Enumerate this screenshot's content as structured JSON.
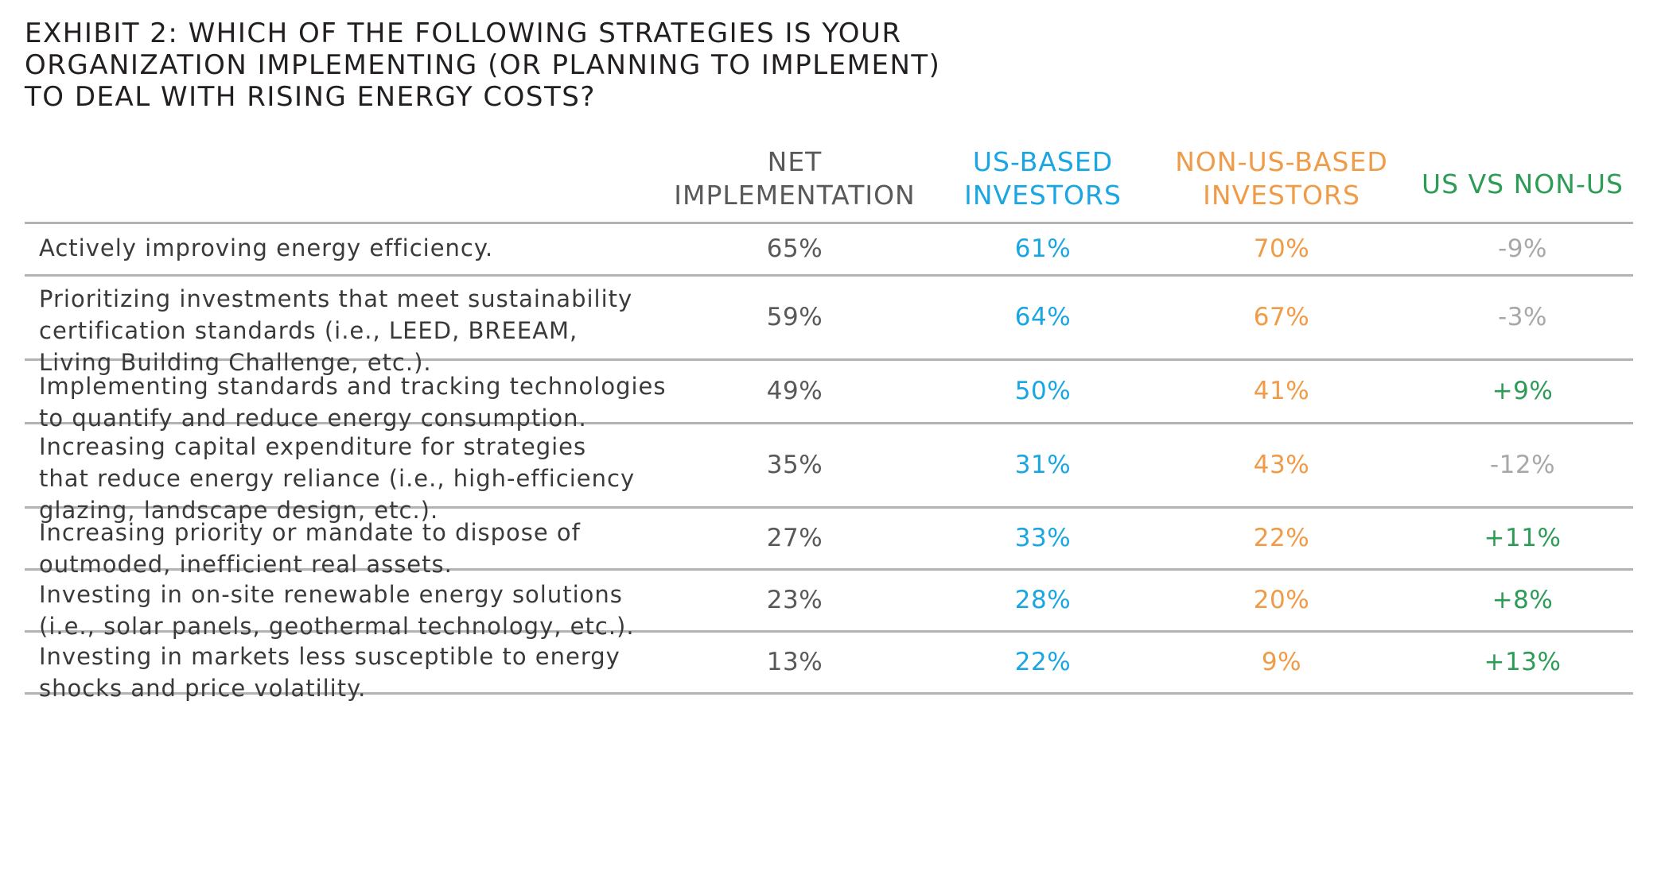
{
  "title_lines": [
    "EXHIBIT 2: WHICH OF THE FOLLOWING STRATEGIES IS YOUR",
    "ORGANIZATION IMPLEMENTING (OR PLANNING TO IMPLEMENT)",
    "TO DEAL WITH RISING ENERGY COSTS?"
  ],
  "colors": {
    "net": "#58595b",
    "us": "#1aa6e2",
    "nonus": "#ef9b47",
    "positive": "#2e9b57",
    "negative": "#a8a8a8",
    "rule": "#b3b3b3"
  },
  "columns": [
    {
      "key": "net",
      "lines": [
        "NET",
        "IMPLEMENTATION"
      ],
      "color": "#58595b"
    },
    {
      "key": "us",
      "lines": [
        "US-BASED",
        "INVESTORS"
      ],
      "color": "#1aa6e2"
    },
    {
      "key": "nonus",
      "lines": [
        "NON-US-BASED",
        "INVESTORS"
      ],
      "color": "#ef9b47"
    },
    {
      "key": "diff",
      "lines": [
        "US VS NON-US"
      ],
      "color": "#2e9b57"
    }
  ],
  "rows": [
    {
      "label_lines": [
        "Actively improving energy efficiency."
      ],
      "net": "65%",
      "us": "61%",
      "nonus": "70%",
      "diff": "-9%"
    },
    {
      "label_lines": [
        "Prioritizing investments that meet sustainability",
        "certification standards (i.e., LEED, BREEAM,",
        "Living Building Challenge, etc.)."
      ],
      "net": "59%",
      "us": "64%",
      "nonus": "67%",
      "diff": "-3%"
    },
    {
      "label_lines": [
        "Implementing standards and tracking technologies",
        "to quantify and reduce energy consumption."
      ],
      "net": "49%",
      "us": "50%",
      "nonus": "41%",
      "diff": "+9%"
    },
    {
      "label_lines": [
        "Increasing capital expenditure for strategies",
        "that reduce energy reliance (i.e., high-efficiency",
        "glazing, landscape design, etc.)."
      ],
      "net": "35%",
      "us": "31%",
      "nonus": "43%",
      "diff": "-12%"
    },
    {
      "label_lines": [
        "Increasing priority or mandate to dispose of",
        "outmoded, inefficient real assets."
      ],
      "net": "27%",
      "us": "33%",
      "nonus": "22%",
      "diff": "+11%"
    },
    {
      "label_lines": [
        "Investing in on-site renewable energy solutions",
        "(i.e., solar panels, geothermal technology, etc.)."
      ],
      "net": "23%",
      "us": "28%",
      "nonus": "20%",
      "diff": "+8%"
    },
    {
      "label_lines": [
        "Investing in markets less susceptible to energy",
        "shocks and price volatility."
      ],
      "net": "13%",
      "us": "22%",
      "nonus": "9%",
      "diff": "+13%"
    }
  ],
  "chart_data": {
    "type": "table",
    "title": "EXHIBIT 2: WHICH OF THE FOLLOWING STRATEGIES IS YOUR ORGANIZATION IMPLEMENTING (OR PLANNING TO IMPLEMENT) TO DEAL WITH RISING ENERGY COSTS?",
    "columns": [
      "NET IMPLEMENTATION",
      "US-BASED INVESTORS",
      "NON-US-BASED INVESTORS",
      "US VS NON-US"
    ],
    "categories": [
      "Actively improving energy efficiency.",
      "Prioritizing investments that meet sustainability certification standards (i.e., LEED, BREEAM, Living Building Challenge, etc.).",
      "Implementing standards and tracking technologies to quantify and reduce energy consumption.",
      "Increasing capital expenditure for strategies that reduce energy reliance (i.e., high-efficiency glazing, landscape design, etc.).",
      "Increasing priority or mandate to dispose of outmoded, inefficient real assets.",
      "Investing in on-site renewable energy solutions (i.e., solar panels, geothermal technology, etc.).",
      "Investing in markets less susceptible to energy shocks and price volatility."
    ],
    "series": [
      {
        "name": "NET IMPLEMENTATION",
        "values": [
          65,
          59,
          49,
          35,
          27,
          23,
          13
        ]
      },
      {
        "name": "US-BASED INVESTORS",
        "values": [
          61,
          64,
          50,
          31,
          33,
          28,
          22
        ]
      },
      {
        "name": "NON-US-BASED INVESTORS",
        "values": [
          70,
          67,
          41,
          43,
          22,
          20,
          9
        ]
      },
      {
        "name": "US VS NON-US",
        "values": [
          -9,
          -3,
          9,
          -12,
          11,
          8,
          13
        ]
      }
    ]
  }
}
